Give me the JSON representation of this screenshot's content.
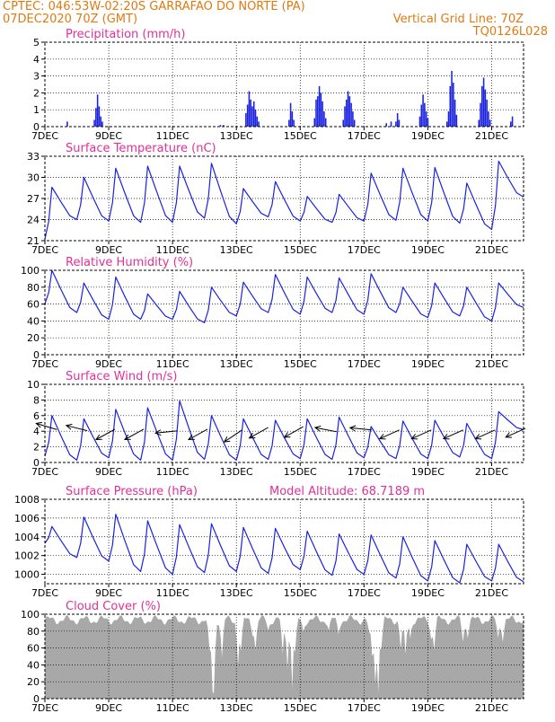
{
  "header": {
    "line1_left": "CPTEC:   046:53W-02:20S  GARRAFAO DO NORTE (PA)",
    "line2_left": "07DEC2020 70Z (GMT)",
    "line2_right": "Vertical Grid Line: 70Z",
    "line3_right": "TQ0126L028"
  },
  "colors": {
    "header": "#e07a10",
    "panel_title": "#e0309a",
    "series": "#1a22e0",
    "cloud": "#a8a8a8",
    "wind_arrow": "#000000"
  },
  "x_axis": {
    "labels": [
      "7DEC",
      "9DEC",
      "11DEC",
      "13DEC",
      "15DEC",
      "17DEC",
      "19DEC",
      "21DEC"
    ],
    "label_days": [
      0,
      2,
      4,
      6,
      8,
      10,
      12,
      14
    ],
    "range_days": [
      0,
      15
    ]
  },
  "chart_data": [
    {
      "id": "precip",
      "type": "bar",
      "title": "Precipitation (mm/h)",
      "ylim": [
        0,
        5
      ],
      "yticks": [
        0,
        1,
        2,
        3,
        4,
        5
      ],
      "grid": true,
      "points": [
        [
          0.7,
          0.3
        ],
        [
          1.55,
          0.4
        ],
        [
          1.6,
          1.1
        ],
        [
          1.65,
          1.9
        ],
        [
          1.7,
          1.2
        ],
        [
          1.75,
          0.6
        ],
        [
          1.8,
          0.3
        ],
        [
          5.5,
          0.1
        ],
        [
          5.6,
          0.1
        ],
        [
          6.3,
          0.8
        ],
        [
          6.35,
          1.3
        ],
        [
          6.4,
          2.1
        ],
        [
          6.45,
          1.6
        ],
        [
          6.5,
          1.2
        ],
        [
          6.55,
          1.5
        ],
        [
          6.6,
          1.0
        ],
        [
          6.65,
          0.6
        ],
        [
          6.7,
          0.3
        ],
        [
          7.65,
          0.4
        ],
        [
          7.7,
          1.4
        ],
        [
          7.75,
          0.9
        ],
        [
          7.8,
          0.4
        ],
        [
          8.45,
          0.5
        ],
        [
          8.5,
          1.6
        ],
        [
          8.55,
          1.8
        ],
        [
          8.6,
          2.4
        ],
        [
          8.65,
          2.0
        ],
        [
          8.7,
          1.5
        ],
        [
          8.75,
          0.9
        ],
        [
          8.8,
          0.5
        ],
        [
          9.35,
          0.4
        ],
        [
          9.4,
          1.2
        ],
        [
          9.45,
          1.6
        ],
        [
          9.5,
          2.1
        ],
        [
          9.55,
          1.8
        ],
        [
          9.6,
          1.4
        ],
        [
          9.65,
          0.9
        ],
        [
          9.7,
          0.4
        ],
        [
          10.7,
          0.2
        ],
        [
          10.85,
          0.3
        ],
        [
          11.0,
          0.3
        ],
        [
          11.05,
          0.8
        ],
        [
          11.1,
          0.4
        ],
        [
          11.75,
          0.6
        ],
        [
          11.8,
          1.3
        ],
        [
          11.85,
          1.9
        ],
        [
          11.9,
          1.4
        ],
        [
          11.95,
          0.9
        ],
        [
          12.0,
          0.5
        ],
        [
          12.6,
          0.3
        ],
        [
          12.65,
          0.9
        ],
        [
          12.7,
          2.4
        ],
        [
          12.75,
          3.3
        ],
        [
          12.8,
          2.6
        ],
        [
          12.85,
          1.6
        ],
        [
          12.9,
          0.7
        ],
        [
          13.6,
          0.4
        ],
        [
          13.65,
          1.4
        ],
        [
          13.7,
          2.4
        ],
        [
          13.75,
          2.9
        ],
        [
          13.8,
          2.2
        ],
        [
          13.85,
          1.6
        ],
        [
          13.9,
          0.9
        ],
        [
          13.95,
          0.4
        ],
        [
          14.6,
          0.3
        ],
        [
          14.65,
          0.6
        ]
      ]
    },
    {
      "id": "temp",
      "type": "line",
      "title": "Surface Temperature (nC)",
      "ylim": [
        21,
        33
      ],
      "yticks": [
        21,
        24,
        27,
        30,
        33
      ],
      "grid": true,
      "day_min": [
        21.2,
        24.0,
        23.8,
        23.6,
        23.6,
        24.2,
        23.4,
        24.4,
        23.8,
        23.6,
        23.8,
        23.9,
        23.8,
        23.5,
        22.6
      ],
      "day_max": [
        28.6,
        30.0,
        31.3,
        31.6,
        31.6,
        32.0,
        28.4,
        29.4,
        27.3,
        27.6,
        30.6,
        31.3,
        31.4,
        29.2,
        32.3
      ],
      "end_value": 27.2
    },
    {
      "id": "rh",
      "type": "line",
      "title": "Relative Humidity (%)",
      "ylim": [
        0,
        100
      ],
      "yticks": [
        0,
        20,
        40,
        60,
        80,
        100
      ],
      "grid": true,
      "day_max": [
        100,
        85,
        92,
        72,
        75,
        80,
        86,
        95,
        92,
        91,
        96,
        80,
        85,
        80,
        85
      ],
      "day_min": [
        60,
        50,
        42,
        42,
        42,
        38,
        46,
        50,
        48,
        50,
        48,
        50,
        44,
        46,
        40
      ],
      "end_value": 56
    },
    {
      "id": "wind",
      "type": "line",
      "title": "Surface Wind (m/s)",
      "ylim": [
        0,
        10
      ],
      "yticks": [
        0,
        2,
        4,
        6,
        8,
        10
      ],
      "grid": true,
      "day_max": [
        6.0,
        5.6,
        6.8,
        7.0,
        7.9,
        6.0,
        5.6,
        5.4,
        5.6,
        5.8,
        4.6,
        5.3,
        5.4,
        5.0,
        6.5
      ],
      "day_min": [
        0.8,
        0.3,
        0.6,
        0.3,
        0.3,
        0.4,
        0.3,
        0.4,
        0.5,
        0.4,
        0.6,
        0.5,
        0.5,
        0.7,
        0.5
      ],
      "end_value": 4.2,
      "arrows": [
        {
          "day": 0.05,
          "value": 4.6,
          "dx": -1,
          "dy": 0.3
        },
        {
          "day": 1.0,
          "value": 4.4,
          "dx": -1,
          "dy": 0.25
        },
        {
          "day": 1.9,
          "value": 3.6,
          "dx": -0.9,
          "dy": -0.5
        },
        {
          "day": 2.8,
          "value": 3.6,
          "dx": -0.9,
          "dy": -0.5
        },
        {
          "day": 3.8,
          "value": 3.9,
          "dx": -1,
          "dy": -0.1
        },
        {
          "day": 4.8,
          "value": 3.6,
          "dx": -0.9,
          "dy": -0.5
        },
        {
          "day": 5.9,
          "value": 3.4,
          "dx": -0.9,
          "dy": -0.6
        },
        {
          "day": 6.7,
          "value": 3.8,
          "dx": -0.9,
          "dy": -0.5
        },
        {
          "day": 7.8,
          "value": 3.9,
          "dx": -0.9,
          "dy": -0.5
        },
        {
          "day": 8.8,
          "value": 4.2,
          "dx": -1,
          "dy": 0.2
        },
        {
          "day": 9.9,
          "value": 4.3,
          "dx": -1,
          "dy": 0.1
        },
        {
          "day": 10.8,
          "value": 3.6,
          "dx": -0.9,
          "dy": -0.4
        },
        {
          "day": 11.8,
          "value": 3.6,
          "dx": -0.9,
          "dy": -0.4
        },
        {
          "day": 12.8,
          "value": 3.6,
          "dx": -0.9,
          "dy": -0.4
        },
        {
          "day": 13.8,
          "value": 3.6,
          "dx": -0.9,
          "dy": -0.4
        },
        {
          "day": 14.75,
          "value": 3.8,
          "dx": -0.9,
          "dy": -0.4
        }
      ]
    },
    {
      "id": "press",
      "type": "line",
      "title": "Surface Pressure (hPa)",
      "extra_label": "Model Altitude: 68.7189 m",
      "ylim": [
        999,
        1008
      ],
      "yticks": [
        1000,
        1002,
        1004,
        1006,
        1008
      ],
      "grid": true,
      "day_max": [
        1005.1,
        1006.1,
        1006.4,
        1005.7,
        1005.3,
        1005.4,
        1005.0,
        1004.9,
        1004.6,
        1004.3,
        1004.2,
        1004.0,
        1003.6,
        1003.2,
        1003.2
      ],
      "day_min": [
        1003.3,
        1001.8,
        1001.4,
        1000.3,
        1000.0,
        1000.2,
        1000.3,
        1000.1,
        1000.5,
        999.9,
        1000.0,
        999.6,
        999.3,
        999.1,
        999.3
      ],
      "end_value": 999.2
    },
    {
      "id": "cloud",
      "type": "area",
      "title": "Cloud Cover (%)",
      "ylim": [
        0,
        100
      ],
      "yticks": [
        0,
        20,
        40,
        60,
        80,
        100
      ],
      "grid": true,
      "base_value": 93,
      "dips": [
        {
          "day": 5.15,
          "value": 60
        },
        {
          "day": 5.25,
          "value": 10
        },
        {
          "day": 5.3,
          "value": 5
        },
        {
          "day": 5.55,
          "value": 45
        },
        {
          "day": 6.05,
          "value": 35
        },
        {
          "day": 6.15,
          "value": 55
        },
        {
          "day": 6.5,
          "value": 75
        },
        {
          "day": 6.6,
          "value": 55
        },
        {
          "day": 7.0,
          "value": 80
        },
        {
          "day": 7.45,
          "value": 50
        },
        {
          "day": 7.6,
          "value": 30
        },
        {
          "day": 7.75,
          "value": 5
        },
        {
          "day": 7.85,
          "value": 55
        },
        {
          "day": 8.1,
          "value": 78
        },
        {
          "day": 8.9,
          "value": 80
        },
        {
          "day": 9.2,
          "value": 75
        },
        {
          "day": 10.15,
          "value": 80
        },
        {
          "day": 10.25,
          "value": 50
        },
        {
          "day": 10.35,
          "value": 15
        },
        {
          "day": 10.45,
          "value": 2
        },
        {
          "day": 10.55,
          "value": 60
        },
        {
          "day": 11.15,
          "value": 55
        },
        {
          "day": 11.3,
          "value": 48
        },
        {
          "day": 11.45,
          "value": 70
        },
        {
          "day": 12.1,
          "value": 70
        },
        {
          "day": 12.2,
          "value": 55
        },
        {
          "day": 13.1,
          "value": 65
        },
        {
          "day": 13.25,
          "value": 70
        },
        {
          "day": 14.2,
          "value": 70
        },
        {
          "day": 14.35,
          "value": 65
        }
      ]
    }
  ]
}
